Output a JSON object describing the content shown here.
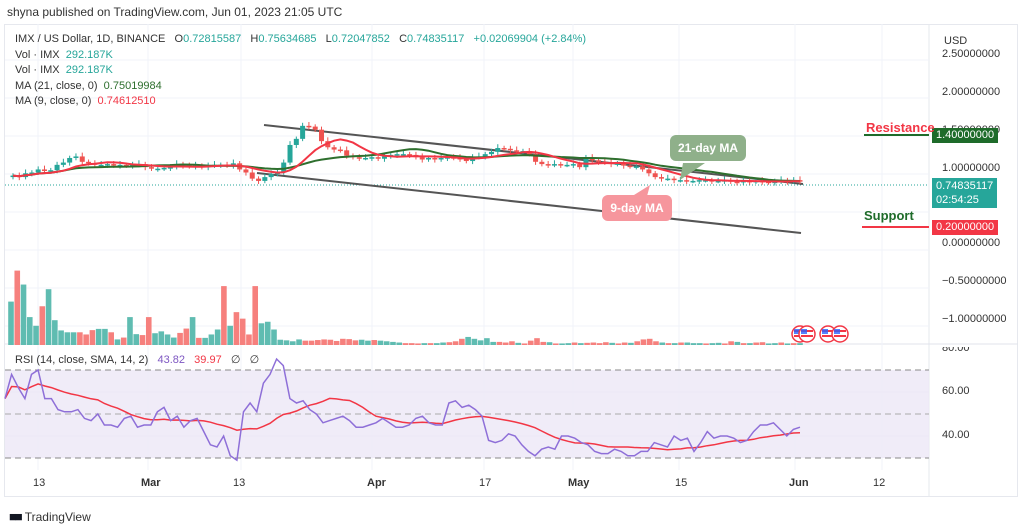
{
  "published_line": "shyna published on TradingView.com, Jun 01, 2023 21:05 UTC",
  "legend": {
    "symbol": "IMX / US Dollar, 1D, BINANCE",
    "open_label": "O",
    "open": "0.72815587",
    "high_label": "H",
    "high": "0.75634685",
    "low_label": "L",
    "low": "0.72047852",
    "close_label": "C",
    "close": "0.74835117",
    "change": "+0.02069904 (+2.84%)",
    "vol1_label": "Vol · IMX",
    "vol1": "292.187K",
    "vol2_label": "Vol · IMX",
    "vol2": "292.187K",
    "ma21_label": "MA (21, close, 0)",
    "ma21": "0.75019984",
    "ma9_label": "MA (9, close, 0)",
    "ma9": "0.74612510"
  },
  "rsi_legend": {
    "label": "RSI (14, close, SMA, 14, 2)",
    "rsi": "43.82",
    "sma": "39.97",
    "na1": "∅",
    "na2": "∅"
  },
  "price_axis": {
    "currency": "USD",
    "ticks": [
      "2.50000000",
      "2.00000000",
      "1.50000000",
      "1.00000000",
      "0.00000000",
      "−0.50000000",
      "−1.00000000"
    ],
    "last_price": "0.74835117",
    "countdown": "02:54:25",
    "resistance_price": "1.40000000",
    "support_price": "0.20000000"
  },
  "rsi_axis": {
    "ticks": [
      "80.00",
      "60.00",
      "40.00"
    ]
  },
  "time_axis": {
    "ticks": [
      {
        "label": "13",
        "bold": false
      },
      {
        "label": "Mar",
        "bold": true
      },
      {
        "label": "13",
        "bold": false
      },
      {
        "label": "Apr",
        "bold": true
      },
      {
        "label": "17",
        "bold": false
      },
      {
        "label": "May",
        "bold": true
      },
      {
        "label": "15",
        "bold": false
      },
      {
        "label": "Jun",
        "bold": true
      },
      {
        "label": "12",
        "bold": false
      }
    ]
  },
  "annotations": {
    "resistance": "Resistance",
    "support": "Support",
    "ma21_callout": "21-day MA",
    "ma9_callout": "9-day MA"
  },
  "footer": {
    "brand": "TradingView"
  },
  "colors": {
    "up": "#26a69a",
    "down": "#ef5350",
    "ma21": "#2e6f2e",
    "ma9": "#f23645",
    "rsi": "#7e57c2",
    "rsi_sma": "#f23645",
    "resistance_tag": "#1e6b2a",
    "support_tag": "#f23645",
    "last_price_tag": "#26a69a"
  },
  "chart_data": {
    "type": "candlestick",
    "title": "IMX / US Dollar, 1D, BINANCE",
    "ylabel": "USD",
    "ylim": [
      -1.25,
      2.6
    ],
    "grid": true,
    "x_ticks": [
      "13",
      "Mar",
      "13",
      "Apr",
      "17",
      "May",
      "15",
      "Jun",
      "12"
    ],
    "last_close": 0.74835117,
    "ohlc_last": {
      "open": 0.72815587,
      "high": 0.75634685,
      "low": 0.72047852,
      "close": 0.74835117,
      "change": 0.02069904,
      "change_pct": 2.84
    },
    "ma21_last": 0.75019984,
    "ma9_last": 0.7461251,
    "horizontal_levels": [
      {
        "name": "Resistance",
        "value": 1.4
      },
      {
        "name": "Support",
        "value": 0.2
      }
    ],
    "channel": {
      "upper": [
        {
          "date": "Feb 17",
          "value": 1.53
        },
        {
          "date": "Jun 01",
          "value": 0.76
        }
      ],
      "lower": [
        {
          "date": "Feb 13",
          "value": 0.88
        },
        {
          "date": "Jun 01",
          "value": 0.08
        }
      ]
    },
    "volume_last": "292.187K",
    "rsi": {
      "period": 14,
      "last": 43.82,
      "sma_last": 39.97,
      "bands": [
        70,
        50,
        30
      ],
      "ylim": [
        25,
        82
      ],
      "ticks": [
        80,
        60,
        40
      ]
    },
    "closes_approx": [
      0.82,
      0.8,
      0.85,
      0.86,
      0.9,
      0.88,
      0.89,
      0.96,
      0.99,
      1.05,
      1.07,
      1.0,
      0.98,
      0.96,
      0.96,
      0.97,
      0.95,
      0.96,
      0.95,
      0.96,
      0.97,
      0.93,
      0.91,
      0.91,
      0.92,
      0.93,
      0.97,
      0.95,
      0.94,
      0.95,
      0.93,
      0.95,
      0.96,
      0.96,
      0.95,
      0.98,
      0.9,
      0.86,
      0.78,
      0.75,
      0.8,
      0.84,
      0.87,
      0.99,
      1.22,
      1.3,
      1.47,
      1.46,
      1.42,
      1.27,
      1.19,
      1.16,
      1.15,
      1.08,
      1.06,
      1.05,
      1.05,
      1.06,
      1.04,
      1.07,
      1.09,
      1.1,
      1.1,
      1.09,
      1.06,
      1.03,
      1.05,
      1.03,
      1.05,
      1.06,
      1.05,
      1.04,
      1.01,
      1.06,
      1.07,
      1.1,
      1.13,
      1.18,
      1.17,
      1.15,
      1.13,
      1.14,
      1.1,
      1.0,
      0.97,
      0.96,
      0.97,
      0.96,
      0.96,
      0.97,
      0.93,
      1.05,
      1.02,
      1.0,
      0.99,
      0.97,
      0.98,
      0.95,
      0.94,
      0.94,
      0.9,
      0.85,
      0.8,
      0.78,
      0.78,
      0.76,
      0.76,
      0.75,
      0.75,
      0.76,
      0.76,
      0.75,
      0.75,
      0.76,
      0.74,
      0.73,
      0.75,
      0.74,
      0.75,
      0.74,
      0.73,
      0.74,
      0.76,
      0.74,
      0.76,
      0.75
    ]
  }
}
